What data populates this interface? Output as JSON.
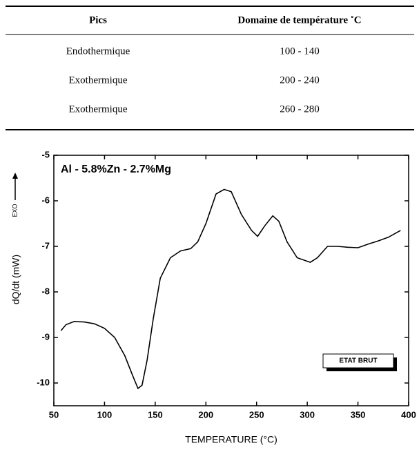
{
  "table": {
    "header": [
      "Pics",
      "Domaine de température ˚C"
    ],
    "rows": [
      [
        "Endothermique",
        "100 - 140"
      ],
      [
        "Exothermique",
        "200 - 240"
      ],
      [
        "Exothermique",
        "260 - 280"
      ]
    ]
  },
  "chart_data": {
    "type": "line",
    "annotation": "Al - 5.8%Zn - 2.7%Mg",
    "box_label": "ETAT BRUT",
    "direction_label": "EXO",
    "xlabel": "TEMPERATURE (°C)",
    "ylabel": "dQ/dt (mW)",
    "xlim": [
      50,
      400
    ],
    "xticks": [
      50,
      100,
      150,
      200,
      250,
      300,
      350,
      400
    ],
    "ylim": [
      -10.5,
      -5
    ],
    "yticks": [
      -5,
      -6,
      -7,
      -8,
      -9,
      -10
    ],
    "color": "#000000",
    "x": [
      57,
      62,
      70,
      80,
      90,
      100,
      110,
      120,
      128,
      133,
      137,
      142,
      148,
      155,
      165,
      175,
      185,
      192,
      200,
      210,
      218,
      225,
      235,
      245,
      251,
      258,
      266,
      272,
      280,
      290,
      303,
      310,
      320,
      330,
      340,
      350,
      360,
      370,
      380,
      392
    ],
    "values": [
      -8.85,
      -8.72,
      -8.65,
      -8.66,
      -8.7,
      -8.8,
      -9.0,
      -9.4,
      -9.85,
      -10.12,
      -10.05,
      -9.5,
      -8.6,
      -7.7,
      -7.25,
      -7.1,
      -7.05,
      -6.9,
      -6.5,
      -5.85,
      -5.75,
      -5.8,
      -6.3,
      -6.65,
      -6.78,
      -6.55,
      -6.33,
      -6.45,
      -6.9,
      -7.25,
      -7.35,
      -7.25,
      -7.0,
      -7.0,
      -7.02,
      -7.03,
      -6.95,
      -6.88,
      -6.8,
      -6.65
    ]
  }
}
